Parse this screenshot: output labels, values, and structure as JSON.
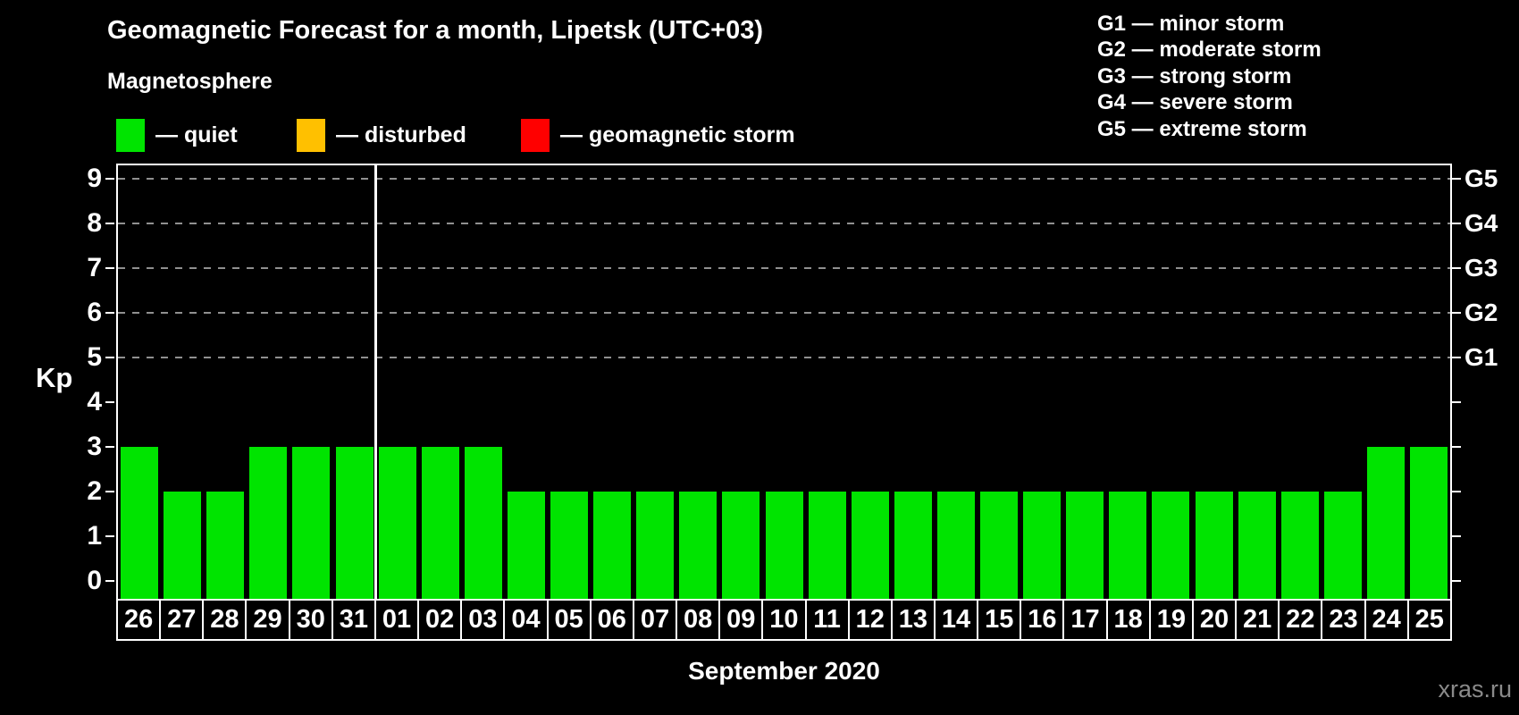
{
  "title": "Geomagnetic Forecast for a month, Lipetsk (UTC+03)",
  "subtitle": "Magnetosphere",
  "condition_legend": [
    {
      "name": "quiet",
      "label": "— quiet",
      "color": "#00e400"
    },
    {
      "name": "disturbed",
      "label": "— disturbed",
      "color": "#ffc000"
    },
    {
      "name": "geomagnetic-storm",
      "label": "— geomagnetic storm",
      "color": "#ff0000"
    }
  ],
  "storm_scale_legend": [
    "G1 — minor storm",
    "G2 — moderate storm",
    "G3 — strong storm",
    "G4 — severe storm",
    "G5 — extreme storm"
  ],
  "watermark": "xras.ru",
  "colors": {
    "background": "#000000",
    "axis": "#ffffff",
    "text": "#ffffff",
    "gridline": "#909090",
    "watermark": "#8a8a8a"
  },
  "chart_data": {
    "type": "bar",
    "title": "Geomagnetic Forecast for a month, Lipetsk (UTC+03)",
    "xlabel": "September 2020",
    "ylabel": "Kp",
    "ylim": [
      0,
      9
    ],
    "yticks": [
      0,
      1,
      2,
      3,
      4,
      5,
      6,
      7,
      8,
      9
    ],
    "gridlines_at_kp": [
      5,
      6,
      7,
      8,
      9
    ],
    "grid_style": "dashed horizontal lines at G-storm levels only",
    "right_axis": [
      {
        "kp": 5,
        "label": "G1"
      },
      {
        "kp": 6,
        "label": "G2"
      },
      {
        "kp": 7,
        "label": "G3"
      },
      {
        "kp": 8,
        "label": "G4"
      },
      {
        "kp": 9,
        "label": "G5"
      }
    ],
    "categories": [
      "26",
      "27",
      "28",
      "29",
      "30",
      "31",
      "01",
      "02",
      "03",
      "04",
      "05",
      "06",
      "07",
      "08",
      "09",
      "10",
      "11",
      "12",
      "13",
      "14",
      "15",
      "16",
      "17",
      "18",
      "19",
      "20",
      "21",
      "22",
      "23",
      "24",
      "25"
    ],
    "values": [
      3,
      2,
      2,
      3,
      3,
      3,
      3,
      3,
      3,
      2,
      2,
      2,
      2,
      2,
      2,
      2,
      2,
      2,
      2,
      2,
      2,
      2,
      2,
      2,
      2,
      2,
      2,
      2,
      2,
      3,
      3
    ],
    "bar_color": "#00e400",
    "month_divider_after": "31",
    "legend_position": "top-left"
  }
}
